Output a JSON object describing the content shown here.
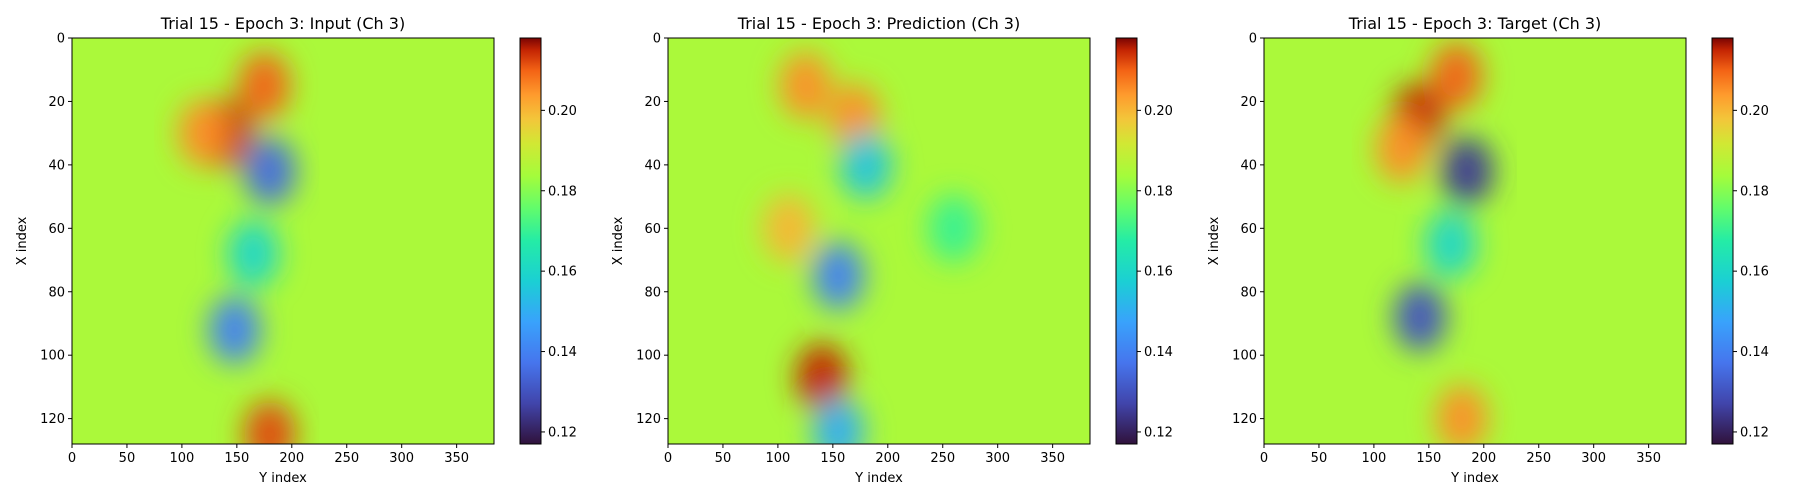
{
  "chart_data": [
    {
      "type": "heatmap",
      "title": "Trial 15 - Epoch 3: Input (Ch 3)",
      "xlabel": "Y index",
      "ylabel": "X index",
      "xlim": [
        0,
        384
      ],
      "ylim": [
        128,
        0
      ],
      "xticks": [
        0,
        50,
        100,
        150,
        200,
        250,
        300,
        350
      ],
      "yticks": [
        0,
        20,
        40,
        60,
        80,
        100,
        120
      ],
      "colormap": "turbo",
      "colorbar": {
        "range": [
          0.117,
          0.218
        ],
        "ticks": [
          "0.12",
          "0.14",
          "0.16",
          "0.18",
          "0.20"
        ]
      },
      "features": [
        {
          "x": 140,
          "y": 30,
          "value": 0.215
        },
        {
          "x": 175,
          "y": 15,
          "value": 0.21
        },
        {
          "x": 180,
          "y": 125,
          "value": 0.212
        },
        {
          "x": 180,
          "y": 42,
          "value": 0.135
        },
        {
          "x": 148,
          "y": 92,
          "value": 0.14
        },
        {
          "x": 165,
          "y": 68,
          "value": 0.16
        },
        {
          "x": 120,
          "y": 30,
          "value": 0.205
        }
      ]
    },
    {
      "type": "heatmap",
      "title": "Trial 15 - Epoch 3: Prediction (Ch 3)",
      "xlabel": "Y index",
      "ylabel": "X index",
      "xlim": [
        0,
        384
      ],
      "ylim": [
        128,
        0
      ],
      "xticks": [
        0,
        50,
        100,
        150,
        200,
        250,
        300,
        350
      ],
      "yticks": [
        0,
        20,
        40,
        60,
        80,
        100,
        120
      ],
      "colormap": "turbo",
      "colorbar": {
        "range": [
          0.117,
          0.218
        ],
        "ticks": [
          "0.12",
          "0.14",
          "0.16",
          "0.18",
          "0.20"
        ]
      },
      "features": [
        {
          "x": 140,
          "y": 107,
          "value": 0.215
        },
        {
          "x": 155,
          "y": 75,
          "value": 0.14
        },
        {
          "x": 125,
          "y": 15,
          "value": 0.205
        },
        {
          "x": 170,
          "y": 25,
          "value": 0.205
        },
        {
          "x": 180,
          "y": 40,
          "value": 0.155
        },
        {
          "x": 110,
          "y": 60,
          "value": 0.2
        },
        {
          "x": 155,
          "y": 124,
          "value": 0.15
        },
        {
          "x": 260,
          "y": 60,
          "value": 0.17
        }
      ]
    },
    {
      "type": "heatmap",
      "title": "Trial 15 - Epoch 3: Target (Ch 3)",
      "xlabel": "Y index",
      "ylabel": "X index",
      "xlim": [
        0,
        384
      ],
      "ylim": [
        128,
        0
      ],
      "xticks": [
        0,
        50,
        100,
        150,
        200,
        250,
        300,
        350
      ],
      "yticks": [
        0,
        20,
        40,
        60,
        80,
        100,
        120
      ],
      "colormap": "turbo",
      "colorbar": {
        "range": [
          0.117,
          0.218
        ],
        "ticks": [
          "0.12",
          "0.14",
          "0.16",
          "0.18",
          "0.20"
        ]
      },
      "features": [
        {
          "x": 140,
          "y": 25,
          "value": 0.215
        },
        {
          "x": 175,
          "y": 12,
          "value": 0.21
        },
        {
          "x": 180,
          "y": 120,
          "value": 0.205
        },
        {
          "x": 185,
          "y": 42,
          "value": 0.125
        },
        {
          "x": 142,
          "y": 88,
          "value": 0.13
        },
        {
          "x": 170,
          "y": 65,
          "value": 0.16
        },
        {
          "x": 125,
          "y": 35,
          "value": 0.205
        }
      ]
    }
  ]
}
